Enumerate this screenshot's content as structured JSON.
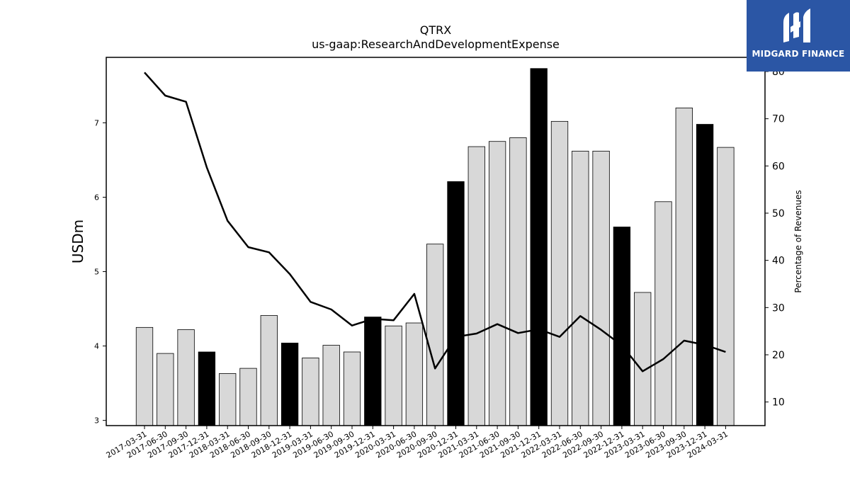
{
  "chart_data": {
    "type": "bar+line",
    "title": "QTRX",
    "subtitle": "us-gaap:ResearchAndDevelopmentExpense",
    "ylabel": "USDm",
    "ylabel_right": "Percentage of Revenues",
    "ylim": [
      2.93,
      7.88
    ],
    "ylim_right": [
      5,
      83
    ],
    "yticks": [
      3,
      4,
      5,
      6,
      7
    ],
    "yticks_right": [
      10,
      20,
      30,
      40,
      50,
      60,
      70,
      80
    ],
    "categories": [
      "2017-03-31",
      "2017-06-30",
      "2017-09-30",
      "2017-12-31",
      "2018-03-31",
      "2018-06-30",
      "2018-09-30",
      "2018-12-31",
      "2019-03-31",
      "2019-06-30",
      "2019-09-30",
      "2019-12-31",
      "2020-03-31",
      "2020-06-30",
      "2020-09-30",
      "2020-12-31",
      "2021-03-31",
      "2021-06-30",
      "2021-09-30",
      "2021-12-31",
      "2022-03-31",
      "2022-06-30",
      "2022-09-30",
      "2022-12-31",
      "2023-03-31",
      "2023-06-30",
      "2023-09-30",
      "2023-12-31",
      "2024-03-31"
    ],
    "series": [
      {
        "type": "bar",
        "values": [
          4.25,
          3.9,
          4.22,
          3.92,
          3.63,
          3.7,
          4.41,
          4.04,
          3.84,
          4.01,
          3.92,
          4.39,
          4.27,
          4.31,
          5.37,
          6.21,
          6.68,
          6.75,
          6.8,
          7.73,
          7.02,
          6.62,
          6.62,
          5.6,
          4.72,
          5.94,
          7.2,
          6.98,
          6.67
        ],
        "highlight": [
          false,
          false,
          false,
          true,
          false,
          false,
          false,
          true,
          false,
          false,
          false,
          true,
          false,
          false,
          false,
          true,
          false,
          false,
          false,
          true,
          false,
          false,
          false,
          true,
          false,
          false,
          false,
          true,
          false
        ],
        "colors": {
          "normal": "#d8d8d8",
          "highlight": "#000000"
        }
      },
      {
        "type": "line",
        "axis": "right",
        "values": [
          79.8,
          74.9,
          73.6,
          59.7,
          48.4,
          42.8,
          41.7,
          37.1,
          31.2,
          29.6,
          26.2,
          27.6,
          27.3,
          32.9,
          17.1,
          23.8,
          24.5,
          26.5,
          24.6,
          25.4,
          23.8,
          28.2,
          25.3,
          22.0,
          16.5,
          19.1,
          23.0,
          22.1,
          20.6
        ],
        "color": "#000000"
      }
    ]
  },
  "logo": {
    "brand": "MIDGARD FINANCE",
    "icon": "midgard-m-logo-icon",
    "background": "#2b56a5",
    "foreground": "#ffffff"
  }
}
